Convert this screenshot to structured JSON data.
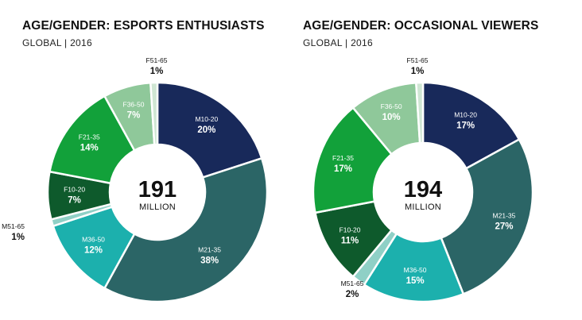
{
  "colors": {
    "M10-20": "#18295a",
    "M21-35": "#2b6566",
    "M36-50": "#1cb0ad",
    "M51-65": "#8fd0c6",
    "F10-20": "#0e5a2c",
    "F21-35": "#12a13a",
    "F36-50": "#8fc89a",
    "F51-65": "#cfe6d3"
  },
  "chart_data": [
    {
      "type": "pie",
      "title": "AGE/GENDER: ESPORTS ENTHUSIASTS",
      "subtitle": "GLOBAL | 2016",
      "center_value": "191",
      "center_unit": "MILLION",
      "categories": [
        "M10-20",
        "M21-35",
        "M36-50",
        "M51-65",
        "F10-20",
        "F21-35",
        "F36-50",
        "F51-65"
      ],
      "values": [
        20,
        38,
        12,
        1,
        7,
        14,
        7,
        1
      ],
      "labels": [
        "20%",
        "38%",
        "12%",
        "1%",
        "7%",
        "14%",
        "7%",
        "1%"
      ]
    },
    {
      "type": "pie",
      "title": "AGE/GENDER: OCCASIONAL VIEWERS",
      "subtitle": "GLOBAL | 2016",
      "center_value": "194",
      "center_unit": "MILLION",
      "categories": [
        "M10-20",
        "M21-35",
        "M36-50",
        "M51-65",
        "F10-20",
        "F21-35",
        "F36-50",
        "F51-65"
      ],
      "values": [
        17,
        27,
        15,
        2,
        11,
        17,
        10,
        1
      ],
      "labels": [
        "17%",
        "27%",
        "15%",
        "2%",
        "11%",
        "17%",
        "10%",
        "1%"
      ]
    }
  ]
}
